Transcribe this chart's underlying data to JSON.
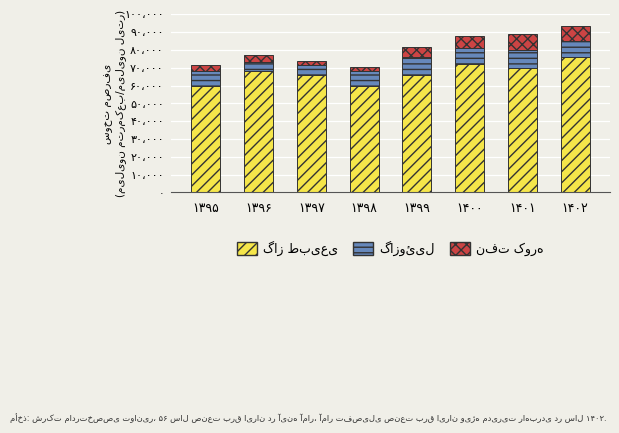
{
  "years": [
    "۱۳۹۵",
    "۱۳۹۶",
    "۱۳۹۷",
    "۱۳۹۸",
    "۱۳۹۹",
    "۱۴۰۰",
    "۱۴۰۱",
    "۱۴۰۲"
  ],
  "natural_gas": [
    60000,
    68000,
    66000,
    60000,
    66000,
    72000,
    70000,
    76000
  ],
  "gazoil": [
    8000,
    5500,
    5500,
    8000,
    10000,
    9000,
    10000,
    9000
  ],
  "naft_kure": [
    3500,
    3500,
    2500,
    2500,
    5500,
    7000,
    9000,
    8500
  ],
  "ylabel_line1": "سوخت مصرفی",
  "ylabel_line2": "(میلیون مترمکعب/میلیون لیتر)",
  "legend_gas": "گاز طبیعی",
  "legend_gazoil": "گازوئیل",
  "legend_naft": "نفت کوره",
  "source_text": "مأخذ: شرکت مادرتخصصی توانیر، ۵۶ سال صنعت برق ایران در آینه آمار، آمار تفصیلی صنعت برق ایران ویژه مدیریت راهبردی در سال ۱۴۰۲.",
  "ylim": [
    0,
    100000
  ],
  "ytick_labels": [
    "·",
    "۱۰،۰۰۰",
    "۲۰،۰۰۰",
    "۳۰،۰۰۰",
    "۴۰،۰۰۰",
    "۵۰،۰۰۰",
    "۶۰،۰۰۰",
    "۷۰،۰۰۰",
    "۸۰،۰۰۰",
    "۹۰،۰۰۰",
    "۱۰۰،۰۰۰"
  ],
  "ytick_vals": [
    0,
    10000,
    20000,
    30000,
    40000,
    50000,
    60000,
    70000,
    80000,
    90000,
    100000
  ],
  "bg_color": "#f0efe8",
  "bar_border": "#333333",
  "gas_color": "#f5e64a",
  "gas_hatch": "///",
  "gazoil_color": "#6688bb",
  "gazoil_hatch": "---",
  "naft_color": "#cc4444",
  "naft_hatch": "xxx"
}
